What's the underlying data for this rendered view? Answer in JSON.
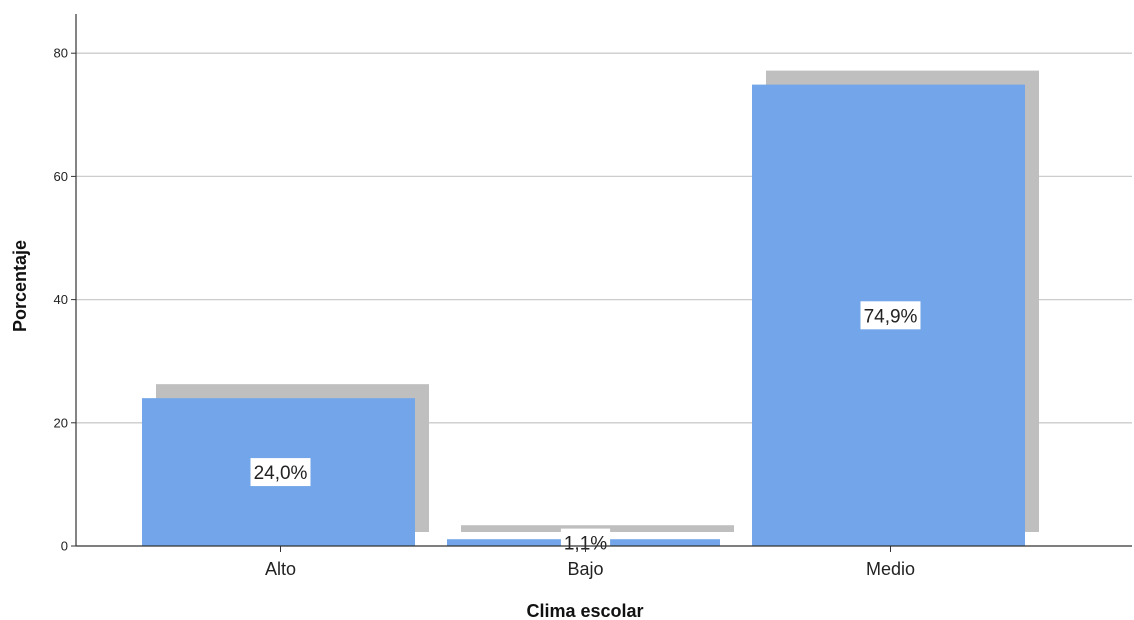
{
  "chart_data": {
    "type": "bar",
    "categories": [
      "Alto",
      "Bajo",
      "Medio"
    ],
    "values": [
      24.0,
      1.1,
      74.9
    ],
    "data_labels": [
      "24,0%",
      "1,1%",
      "74,9%"
    ],
    "xlabel": "Clima escolar",
    "ylabel": "Porcentaje",
    "ylim": [
      0,
      85
    ],
    "yticks": [
      0,
      20,
      40,
      60,
      80
    ],
    "grid": true,
    "bar_color": "#72A5E9",
    "shadow_color": "#BFBFBF"
  }
}
